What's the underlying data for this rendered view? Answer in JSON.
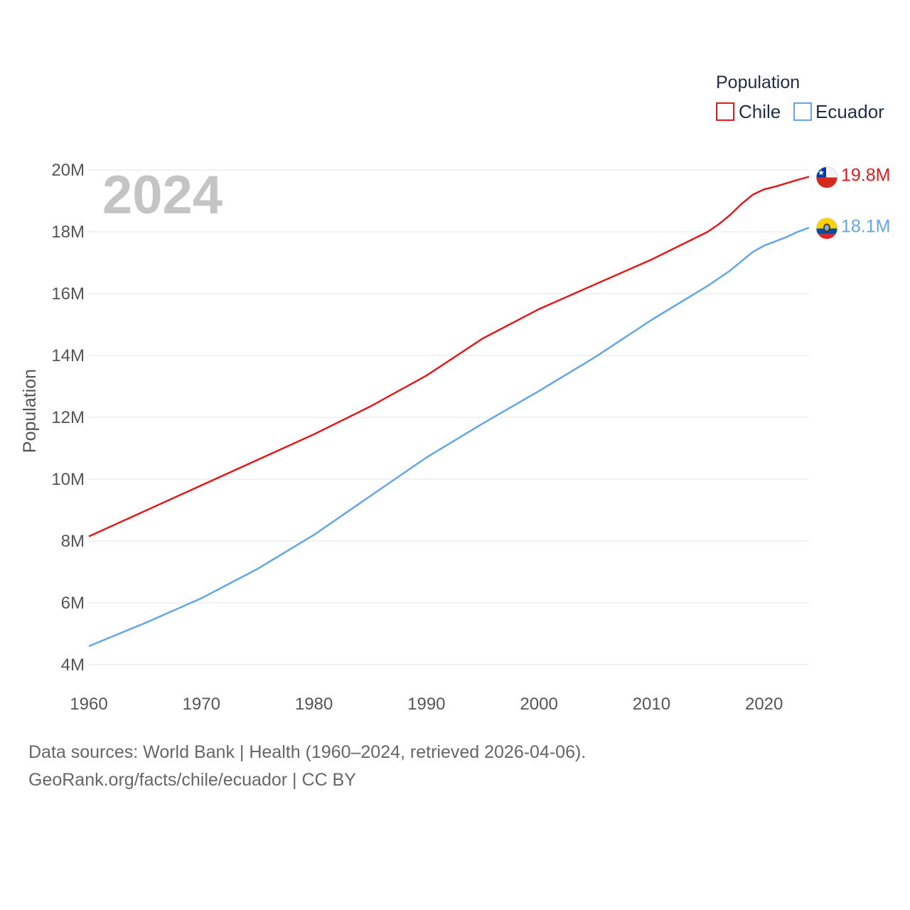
{
  "colors": {
    "chile": "#e31a1c",
    "ecuador": "#64a6e6",
    "grid": "#e6e6e6",
    "text": "#555555"
  },
  "legend": {
    "title": "Population"
  },
  "year_label": "2024",
  "footer": {
    "line1": "Data sources: World Bank | Health (1960–2024, retrieved 2026-04-06).",
    "line2": "GeoRank.org/facts/chile/ecuador | CC BY"
  },
  "chart_data": {
    "type": "line",
    "title": "",
    "xlabel": "",
    "ylabel": "Population",
    "xlim": [
      1960,
      2024
    ],
    "ylim": [
      4000000,
      20000000
    ],
    "x_ticks": [
      1960,
      1970,
      1980,
      1990,
      2000,
      2010,
      2020
    ],
    "y_ticks": [
      {
        "value": 4000000,
        "label": "4M"
      },
      {
        "value": 6000000,
        "label": "6M"
      },
      {
        "value": 8000000,
        "label": "8M"
      },
      {
        "value": 10000000,
        "label": "10M"
      },
      {
        "value": 12000000,
        "label": "12M"
      },
      {
        "value": 14000000,
        "label": "14M"
      },
      {
        "value": 16000000,
        "label": "16M"
      },
      {
        "value": 18000000,
        "label": "18M"
      },
      {
        "value": 20000000,
        "label": "20M"
      }
    ],
    "series": [
      {
        "name": "Chile",
        "color_key": "chile",
        "end_label": "19.8M",
        "flag": "chile-flag",
        "points": [
          [
            1960,
            8150000
          ],
          [
            1970,
            9800000
          ],
          [
            1980,
            11450000
          ],
          [
            1985,
            12350000
          ],
          [
            1990,
            13350000
          ],
          [
            1995,
            14550000
          ],
          [
            2000,
            15500000
          ],
          [
            2005,
            16300000
          ],
          [
            2010,
            17100000
          ],
          [
            2015,
            18000000
          ],
          [
            2016,
            18250000
          ],
          [
            2017,
            18550000
          ],
          [
            2018,
            18900000
          ],
          [
            2019,
            19200000
          ],
          [
            2020,
            19370000
          ],
          [
            2021,
            19460000
          ],
          [
            2022,
            19570000
          ],
          [
            2023,
            19680000
          ],
          [
            2024,
            19780000
          ]
        ]
      },
      {
        "name": "Ecuador",
        "color_key": "ecuador",
        "end_label": "18.1M",
        "flag": "ecuador-flag",
        "points": [
          [
            1960,
            4600000
          ],
          [
            1965,
            5350000
          ],
          [
            1970,
            6150000
          ],
          [
            1975,
            7100000
          ],
          [
            1980,
            8200000
          ],
          [
            1985,
            9450000
          ],
          [
            1990,
            10700000
          ],
          [
            1995,
            11800000
          ],
          [
            2000,
            12850000
          ],
          [
            2005,
            13950000
          ],
          [
            2010,
            15150000
          ],
          [
            2015,
            16250000
          ],
          [
            2017,
            16750000
          ],
          [
            2019,
            17350000
          ],
          [
            2020,
            17550000
          ],
          [
            2022,
            17830000
          ],
          [
            2023,
            18000000
          ],
          [
            2024,
            18130000
          ]
        ]
      }
    ]
  }
}
